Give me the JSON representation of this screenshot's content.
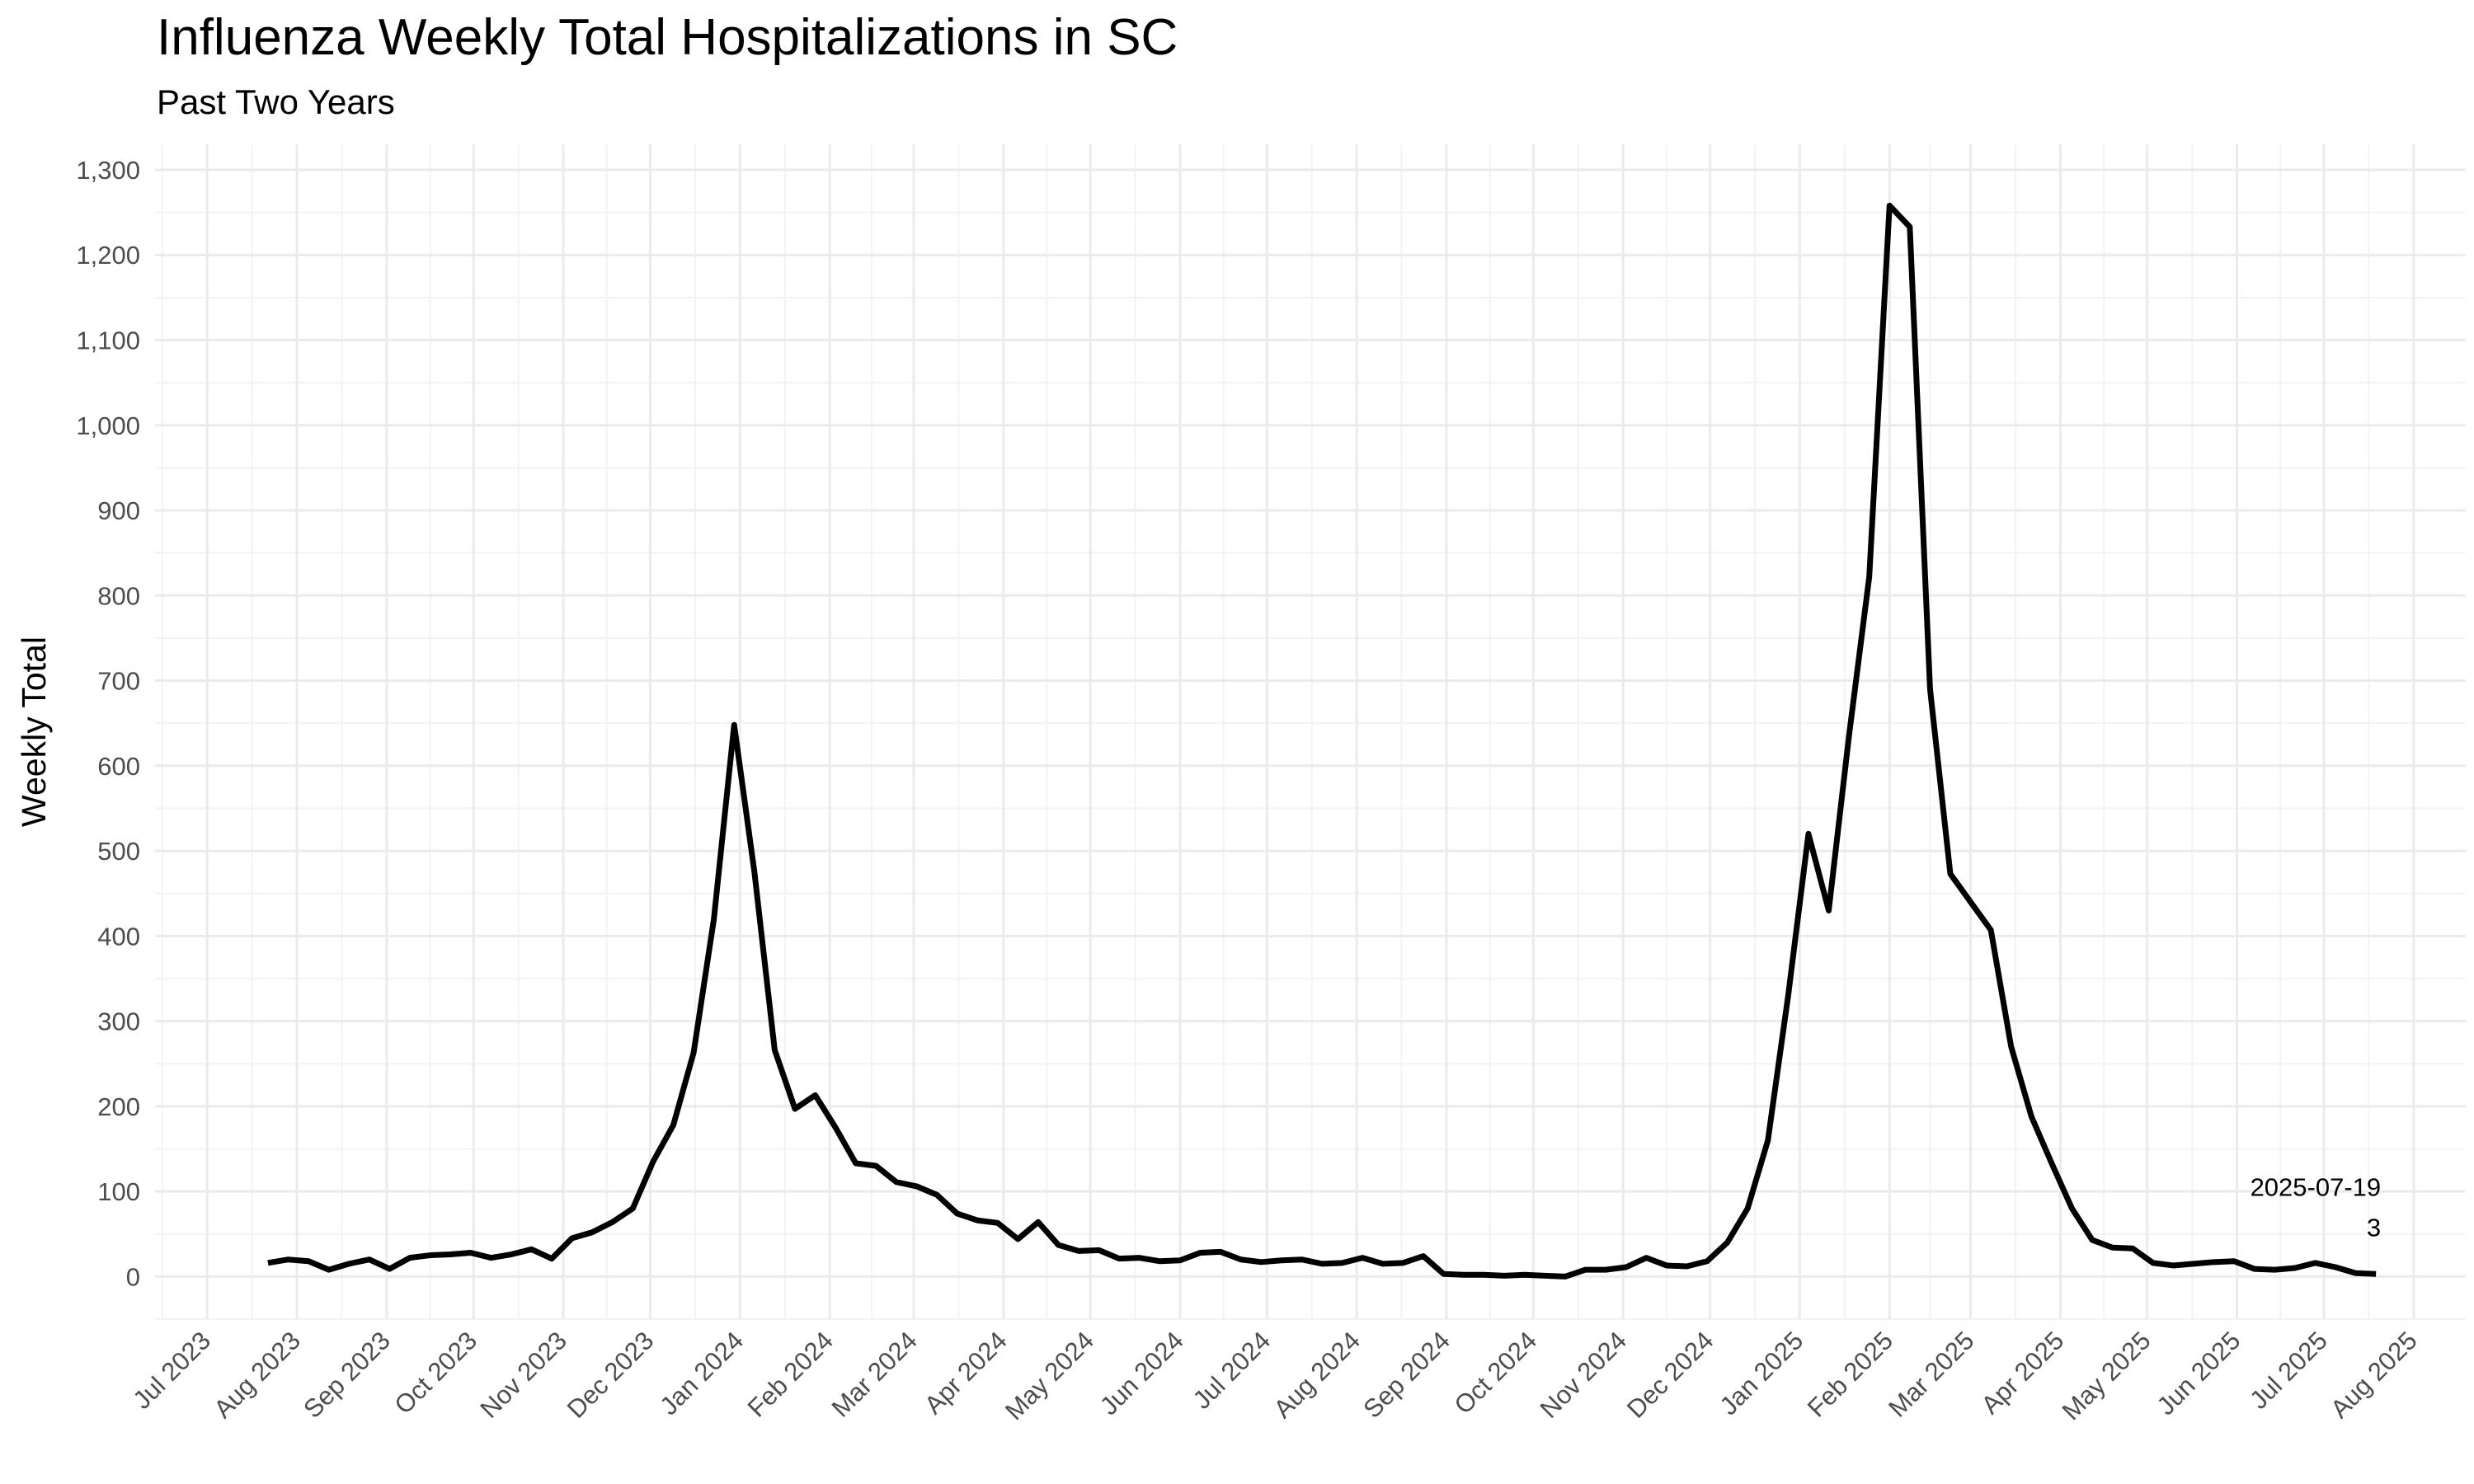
{
  "chart_data": {
    "type": "line",
    "title": "Influenza Weekly Total Hospitalizations in SC",
    "subtitle": "Past Two Years",
    "xlabel": "",
    "ylabel": "Weekly Total",
    "ylim": [
      -50,
      1330
    ],
    "xlim": [
      "2023-06-13",
      "2025-08-19"
    ],
    "grid": true,
    "y_ticks": [
      0,
      100,
      200,
      300,
      400,
      500,
      600,
      700,
      800,
      900,
      1000,
      1100,
      1200,
      1300
    ],
    "y_tick_labels": [
      "0",
      "100",
      "200",
      "300",
      "400",
      "500",
      "600",
      "700",
      "800",
      "900",
      "1,000",
      "1,100",
      "1,200",
      "1,300"
    ],
    "x_ticks": [
      "2023-07-01",
      "2023-08-01",
      "2023-09-01",
      "2023-10-01",
      "2023-11-01",
      "2023-12-01",
      "2024-01-01",
      "2024-02-01",
      "2024-03-01",
      "2024-04-01",
      "2024-05-01",
      "2024-06-01",
      "2024-07-01",
      "2024-08-01",
      "2024-09-01",
      "2024-10-01",
      "2024-11-01",
      "2024-12-01",
      "2025-01-01",
      "2025-02-01",
      "2025-03-01",
      "2025-04-01",
      "2025-05-01",
      "2025-06-01",
      "2025-07-01",
      "2025-08-01"
    ],
    "x_tick_labels": [
      "Jul 2023",
      "Aug 2023",
      "Sep 2023",
      "Oct 2023",
      "Nov 2023",
      "Dec 2023",
      "Jan 2024",
      "Feb 2024",
      "Mar 2024",
      "Apr 2024",
      "May 2024",
      "Jun 2024",
      "Jul 2024",
      "Aug 2024",
      "Sep 2024",
      "Oct 2024",
      "Nov 2024",
      "Dec 2024",
      "Jan 2025",
      "Feb 2025",
      "Mar 2025",
      "Apr 2025",
      "May 2025",
      "Jun 2025",
      "Jul 2025",
      "Aug 2025"
    ],
    "series": [
      {
        "color": "#000000",
        "x": [
          "2023-07-22",
          "2023-07-29",
          "2023-08-05",
          "2023-08-12",
          "2023-08-19",
          "2023-08-26",
          "2023-09-02",
          "2023-09-09",
          "2023-09-16",
          "2023-09-23",
          "2023-09-30",
          "2023-10-07",
          "2023-10-14",
          "2023-10-21",
          "2023-10-28",
          "2023-11-04",
          "2023-11-11",
          "2023-11-18",
          "2023-11-25",
          "2023-12-02",
          "2023-12-09",
          "2023-12-16",
          "2023-12-23",
          "2023-12-30",
          "2024-01-06",
          "2024-01-13",
          "2024-01-20",
          "2024-01-27",
          "2024-02-03",
          "2024-02-10",
          "2024-02-17",
          "2024-02-24",
          "2024-03-02",
          "2024-03-09",
          "2024-03-16",
          "2024-03-23",
          "2024-03-30",
          "2024-04-06",
          "2024-04-13",
          "2024-04-20",
          "2024-04-27",
          "2024-05-04",
          "2024-05-11",
          "2024-05-18",
          "2024-05-25",
          "2024-06-01",
          "2024-06-08",
          "2024-06-15",
          "2024-06-22",
          "2024-06-29",
          "2024-07-06",
          "2024-07-13",
          "2024-07-20",
          "2024-07-27",
          "2024-08-03",
          "2024-08-10",
          "2024-08-17",
          "2024-08-24",
          "2024-08-31",
          "2024-09-07",
          "2024-09-14",
          "2024-09-21",
          "2024-09-28",
          "2024-10-05",
          "2024-10-12",
          "2024-10-19",
          "2024-10-26",
          "2024-11-02",
          "2024-11-09",
          "2024-11-16",
          "2024-11-23",
          "2024-11-30",
          "2024-12-07",
          "2024-12-14",
          "2024-12-21",
          "2024-12-28",
          "2025-01-04",
          "2025-01-11",
          "2025-01-18",
          "2025-01-25",
          "2025-02-01",
          "2025-02-08",
          "2025-02-15",
          "2025-02-22",
          "2025-03-01",
          "2025-03-08",
          "2025-03-15",
          "2025-03-22",
          "2025-03-29",
          "2025-04-05",
          "2025-04-12",
          "2025-04-19",
          "2025-04-26",
          "2025-05-03",
          "2025-05-10",
          "2025-05-17",
          "2025-05-24",
          "2025-05-31",
          "2025-06-07",
          "2025-06-14",
          "2025-06-21",
          "2025-06-28",
          "2025-07-05",
          "2025-07-12",
          "2025-07-19"
        ],
        "values": [
          16,
          20,
          18,
          8,
          15,
          20,
          9,
          22,
          25,
          26,
          28,
          22,
          26,
          32,
          21,
          45,
          52,
          64,
          80,
          135,
          178,
          263,
          420,
          648,
          475,
          266,
          197,
          213,
          175,
          133,
          130,
          111,
          106,
          96,
          74,
          66,
          63,
          44,
          64,
          37,
          30,
          31,
          21,
          22,
          18,
          19,
          28,
          29,
          20,
          17,
          19,
          20,
          15,
          16,
          22,
          15,
          16,
          24,
          3,
          2,
          2,
          1,
          2,
          1,
          0,
          8,
          8,
          11,
          22,
          13,
          12,
          18,
          40,
          80,
          160,
          330,
          520,
          430,
          635,
          822,
          1258,
          1233,
          690,
          473,
          440,
          407,
          270,
          188,
          133,
          80,
          43,
          34,
          33,
          16,
          13,
          15,
          17,
          18,
          9,
          8,
          10,
          16,
          11,
          4,
          3
        ]
      }
    ],
    "annotations": [
      {
        "x": "2025-07-19",
        "y": 3,
        "date_label": "2025-07-19",
        "value_label": "3"
      }
    ]
  }
}
